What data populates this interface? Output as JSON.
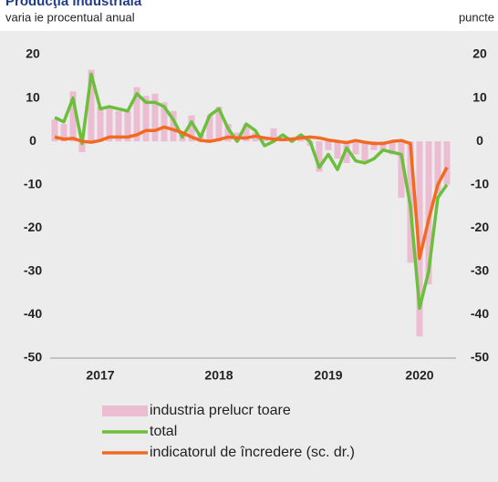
{
  "chart_data": {
    "type": "bar",
    "title": "Producţia industrială",
    "subtitle": "varia ie procentual   anual",
    "y2_label": "puncte",
    "categories": [
      null,
      null,
      null,
      null,
      null,
      "2017",
      null,
      null,
      null,
      null,
      null,
      null,
      null,
      null,
      null,
      null,
      null,
      null,
      "2018",
      null,
      null,
      null,
      null,
      null,
      null,
      null,
      null,
      null,
      null,
      null,
      "2019",
      null,
      null,
      null,
      null,
      null,
      null,
      null,
      null,
      null,
      "2020",
      null,
      null,
      null
    ],
    "series": [
      {
        "name": "industria prelucr  toare",
        "type": "bar",
        "color": "#ebbcd2",
        "values": [
          5,
          4,
          11.5,
          -2.5,
          16.5,
          8,
          8,
          7,
          7,
          12.5,
          10.5,
          11,
          9,
          7,
          2,
          6,
          2,
          6,
          8,
          4,
          2,
          4,
          2,
          1,
          3,
          0.5,
          1,
          0.5,
          -1,
          -7,
          -2,
          -4,
          -5,
          -3,
          -5,
          -2,
          -2,
          -3,
          -13,
          -28,
          -45,
          -33,
          -12,
          -10
        ]
      },
      {
        "name": "total",
        "type": "line",
        "color": "#6cbf3c",
        "values": [
          5.5,
          4.5,
          10,
          -0.5,
          15.5,
          7.5,
          8,
          7.5,
          7,
          11,
          9,
          9,
          8,
          5,
          1,
          4.5,
          1,
          6,
          7.5,
          3,
          0,
          4,
          2.5,
          -1,
          0,
          1.5,
          0,
          1.5,
          0,
          -6,
          -3,
          -6.5,
          -1.5,
          -4.5,
          -5,
          -4,
          -2,
          -2.5,
          -3,
          -15,
          -38.5,
          -30,
          -13,
          -10
        ]
      },
      {
        "name": "indicatorul de încredere (sc. dr.)",
        "type": "line",
        "axis": "y2",
        "color": "#f26a21",
        "values": [
          1,
          0.5,
          0.7,
          0,
          -0.2,
          0.2,
          1,
          1,
          1,
          1.5,
          2.5,
          2.5,
          3.3,
          2.7,
          2,
          1,
          0.2,
          0,
          0.4,
          1,
          0.8,
          0.8,
          1.2,
          0.8,
          0.5,
          0.4,
          0.5,
          0.8,
          1,
          0.8,
          0.3,
          0,
          -0.3,
          0.2,
          -0.2,
          -0.5,
          -0.5,
          0,
          0.2,
          -0.5,
          -27,
          -18,
          -10,
          -6
        ]
      }
    ],
    "ylim": [
      -50,
      20
    ],
    "yticks": [
      -50,
      -40,
      -30,
      -20,
      -10,
      0,
      10,
      20
    ],
    "y2lim": [
      -50,
      20
    ],
    "y2ticks": [
      -50,
      -40,
      -30,
      -20,
      -10,
      0,
      10,
      20
    ],
    "legend": "bottom"
  }
}
